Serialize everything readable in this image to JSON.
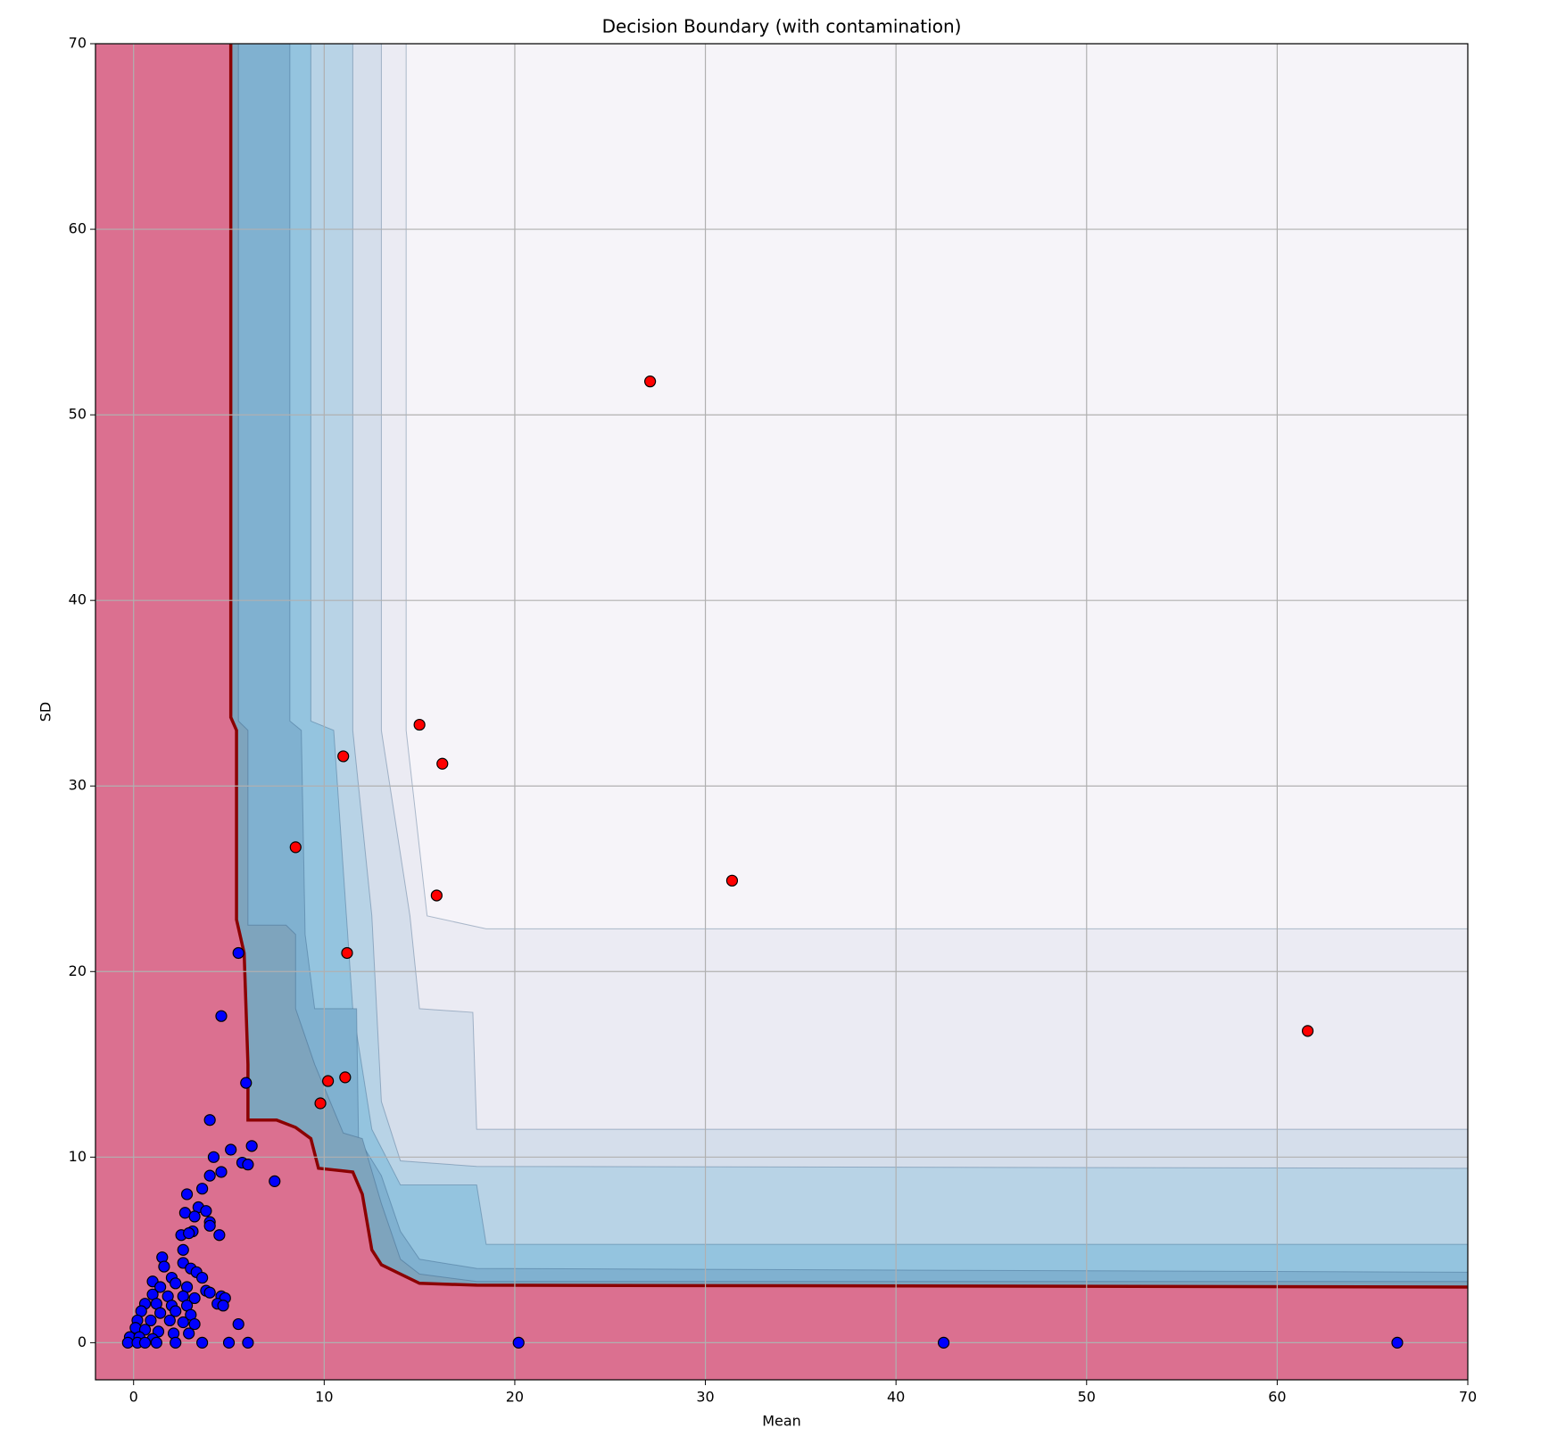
{
  "chart_data": {
    "type": "contour_scatter",
    "title": "Decision Boundary (with contamination)",
    "x_label": "Mean",
    "y_label": "SD",
    "xlim": [
      -2,
      70
    ],
    "ylim": [
      -2,
      70
    ],
    "xticks": [
      0,
      10,
      20,
      30,
      40,
      50,
      60,
      70
    ],
    "yticks": [
      0,
      10,
      20,
      30,
      40,
      50,
      60,
      70
    ],
    "grid": true,
    "background": "#f6f4f9",
    "boundary_color": "#8b0000",
    "contours": [
      {
        "color": "#ebebf3",
        "points": [
          [
            -2,
            70
          ],
          [
            14.3,
            70
          ],
          [
            14.3,
            33
          ],
          [
            15.4,
            23
          ],
          [
            18.5,
            22.3
          ],
          [
            70,
            22.3
          ],
          [
            70,
            -2
          ],
          [
            -2,
            -2
          ]
        ]
      },
      {
        "color": "#d5deeb",
        "points": [
          [
            -2,
            70
          ],
          [
            13,
            70
          ],
          [
            13,
            33
          ],
          [
            14.5,
            23
          ],
          [
            15,
            18
          ],
          [
            17.8,
            17.8
          ],
          [
            18,
            11.5
          ],
          [
            70,
            11.5
          ],
          [
            70,
            -2
          ],
          [
            -2,
            -2
          ]
        ]
      },
      {
        "color": "#b8d3e6",
        "points": [
          [
            -2,
            70
          ],
          [
            11.5,
            70
          ],
          [
            11.5,
            33
          ],
          [
            12.5,
            23
          ],
          [
            13,
            13
          ],
          [
            14,
            9.8
          ],
          [
            18,
            9.5
          ],
          [
            70,
            9.4
          ],
          [
            70,
            -2
          ],
          [
            -2,
            -2
          ]
        ]
      },
      {
        "color": "#94c4df",
        "points": [
          [
            -2,
            70
          ],
          [
            9.3,
            70
          ],
          [
            9.3,
            33.5
          ],
          [
            10.5,
            33
          ],
          [
            11.5,
            18
          ],
          [
            12.5,
            11.5
          ],
          [
            14,
            8.5
          ],
          [
            18,
            8.5
          ],
          [
            18.5,
            5.3
          ],
          [
            70,
            5.3
          ],
          [
            70,
            -2
          ],
          [
            -2,
            -2
          ]
        ]
      },
      {
        "color": "#80b1d0",
        "points": [
          [
            -2,
            70
          ],
          [
            8.2,
            70
          ],
          [
            8.2,
            33.5
          ],
          [
            8.8,
            33
          ],
          [
            9,
            22
          ],
          [
            9.5,
            18
          ],
          [
            11.7,
            18
          ],
          [
            11.8,
            11
          ],
          [
            13,
            9
          ],
          [
            14,
            6
          ],
          [
            15,
            4.5
          ],
          [
            18,
            4
          ],
          [
            70,
            3.8
          ],
          [
            70,
            -2
          ],
          [
            -2,
            -2
          ]
        ]
      },
      {
        "color": "#7ea4bd",
        "points": [
          [
            -2,
            70
          ],
          [
            5.5,
            70
          ],
          [
            5.5,
            33.5
          ],
          [
            6,
            33
          ],
          [
            6,
            22.5
          ],
          [
            8,
            22.5
          ],
          [
            8.5,
            22
          ],
          [
            8.5,
            18
          ],
          [
            9.5,
            15
          ],
          [
            11,
            11.3
          ],
          [
            12,
            11
          ],
          [
            13,
            7.5
          ],
          [
            14,
            4.5
          ],
          [
            15,
            3.7
          ],
          [
            18,
            3.3
          ],
          [
            70,
            3.3
          ],
          [
            70,
            -2
          ],
          [
            -2,
            -2
          ]
        ]
      },
      {
        "color": "#db7090",
        "points": [
          [
            -2,
            70
          ],
          [
            5.1,
            70
          ],
          [
            5.1,
            33.7
          ],
          [
            5.4,
            33
          ],
          [
            5.4,
            22.8
          ],
          [
            5.8,
            21
          ],
          [
            5.9,
            18
          ],
          [
            6,
            15
          ],
          [
            6,
            12
          ],
          [
            7.5,
            12
          ],
          [
            8.5,
            11.6
          ],
          [
            9.3,
            11
          ],
          [
            9.7,
            9.4
          ],
          [
            11.5,
            9.2
          ],
          [
            12,
            8
          ],
          [
            12.5,
            5
          ],
          [
            13,
            4.2
          ],
          [
            14,
            3.7
          ],
          [
            15,
            3.2
          ],
          [
            18,
            3.1
          ],
          [
            70,
            3
          ],
          [
            70,
            -2
          ],
          [
            -2,
            -2
          ]
        ]
      }
    ],
    "series": [
      {
        "color": "#0000ff",
        "x": [
          5.5,
          4.6,
          5.9,
          4,
          4.2,
          5.1,
          6.2,
          5.7,
          6,
          7.4,
          4.6,
          4,
          2.8,
          3.6,
          2.7,
          3.4,
          3.8,
          3.2,
          4,
          4,
          4.5,
          3.1,
          2.5,
          2.9,
          2.6,
          1.5,
          2.6,
          1.6,
          3,
          3.3,
          3.6,
          2,
          1,
          2.2,
          1.4,
          2.8,
          3.8,
          4,
          1,
          1.8,
          2.6,
          3.2,
          4.6,
          4.8,
          0.6,
          1.2,
          2,
          2.8,
          4.4,
          4.7,
          0.4,
          1.4,
          2.2,
          3,
          0.2,
          0.9,
          1.9,
          2.6,
          3.2,
          5.5,
          0.1,
          0.6,
          1.3,
          2.1,
          2.9,
          -0.2,
          0.3,
          1,
          -0.3,
          0.2,
          0.6,
          1.2,
          2.2,
          3.6,
          5,
          6,
          20.2,
          42.5,
          66.3
        ],
        "y": [
          21,
          17.6,
          14,
          12,
          10,
          10.4,
          10.6,
          9.7,
          9.6,
          8.7,
          9.2,
          9,
          8,
          8.3,
          7,
          7.3,
          7.1,
          6.8,
          6.5,
          6.3,
          5.8,
          6,
          5.8,
          5.9,
          5,
          4.6,
          4.3,
          4.1,
          4,
          3.8,
          3.5,
          3.5,
          3.3,
          3.2,
          3,
          3,
          2.8,
          2.7,
          2.6,
          2.5,
          2.5,
          2.4,
          2.5,
          2.4,
          2.1,
          2.1,
          2,
          2,
          2.1,
          2,
          1.7,
          1.6,
          1.7,
          1.5,
          1.2,
          1.2,
          1.2,
          1.1,
          1,
          1,
          0.8,
          0.7,
          0.6,
          0.5,
          0.5,
          0.3,
          0.3,
          0.2,
          0,
          0,
          0,
          0,
          0,
          0,
          0,
          0,
          0,
          0,
          0
        ]
      },
      {
        "color": "#ff0000",
        "x": [
          27.1,
          15,
          16.2,
          11,
          8.5,
          31.4,
          15.9,
          11.2,
          61.6,
          10.2,
          11.1,
          9.8
        ],
        "y": [
          51.8,
          33.3,
          31.2,
          31.6,
          26.7,
          24.9,
          24.1,
          21,
          16.8,
          14.1,
          14.3,
          12.9
        ]
      }
    ]
  }
}
